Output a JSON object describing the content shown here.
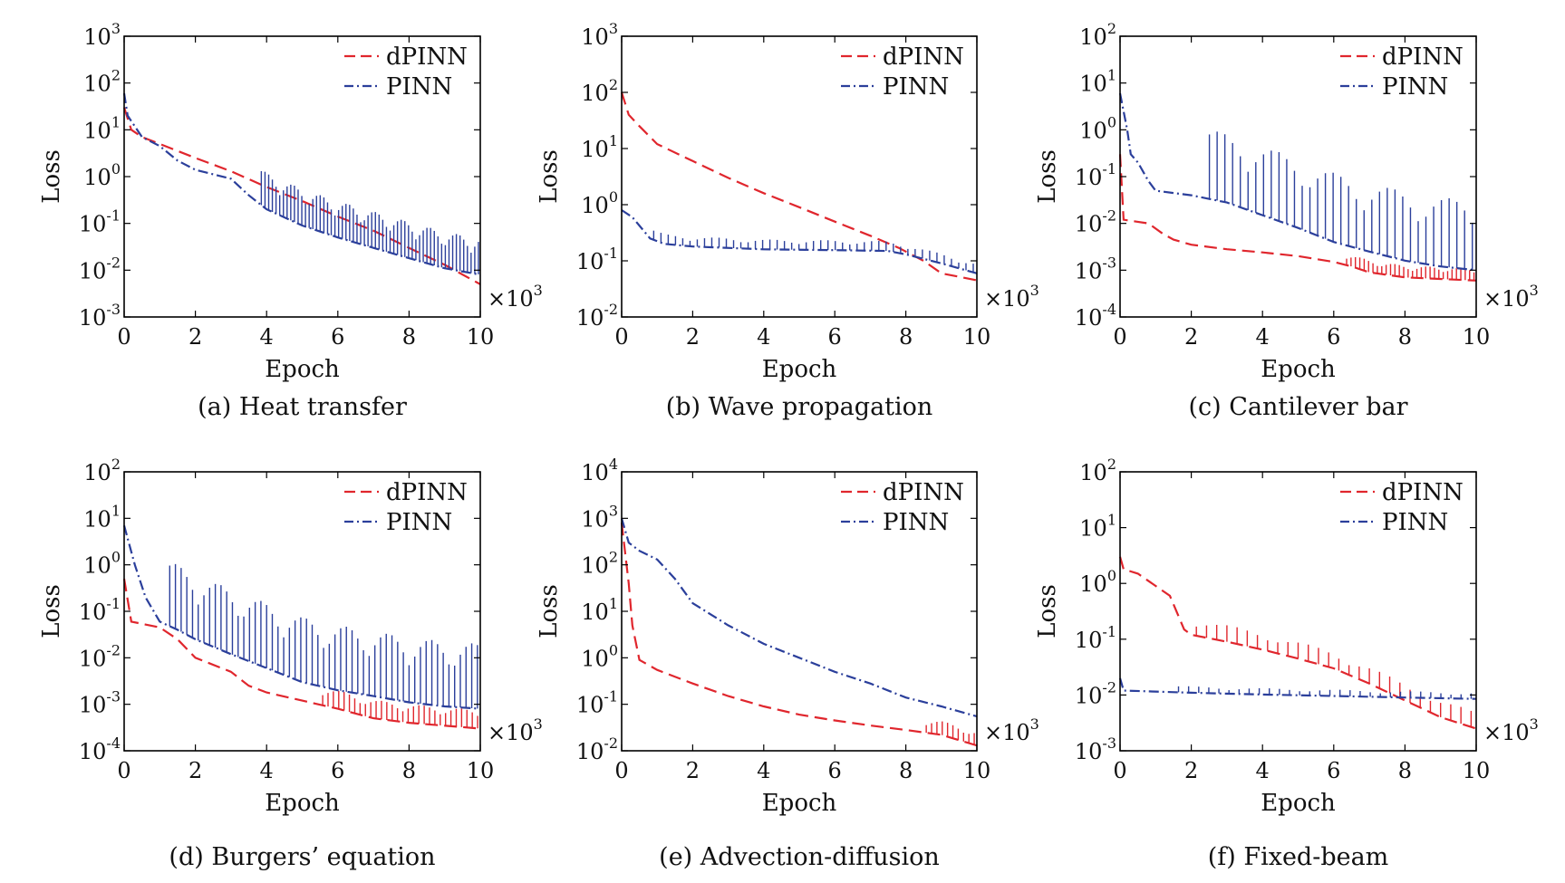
{
  "figure": {
    "legend_position": "top-right",
    "colors": {
      "dPINN": "#e0262d",
      "PINN": "#2b3f9b"
    }
  },
  "chart_data": [
    {
      "id": "a",
      "type": "line",
      "caption": "(a) Heat transfer",
      "xlabel": "Epoch",
      "ylabel": "Loss",
      "x_multiplier": "×10",
      "x_multiplier_exp": "3",
      "xlim": [
        0,
        10
      ],
      "xticks": [
        0,
        2,
        4,
        6,
        8,
        10
      ],
      "yscale": "log",
      "ylim_exp": [
        -3,
        3
      ],
      "legend": [
        "dPINN",
        "PINN"
      ],
      "series": [
        {
          "name": "dPINN",
          "style": "dashed",
          "points": [
            [
              0,
              30
            ],
            [
              0.2,
              10
            ],
            [
              0.5,
              7
            ],
            [
              1,
              5
            ],
            [
              2,
              2.5
            ],
            [
              3,
              1.3
            ],
            [
              4,
              0.6
            ],
            [
              5,
              0.3
            ],
            [
              6,
              0.14
            ],
            [
              7,
              0.07
            ],
            [
              8,
              0.03
            ],
            [
              9,
              0.013
            ],
            [
              10,
              0.005
            ]
          ]
        },
        {
          "name": "PINN",
          "style": "dashdot",
          "points": [
            [
              0,
              60
            ],
            [
              0.1,
              20
            ],
            [
              0.5,
              7
            ],
            [
              1,
              4.5
            ],
            [
              1.5,
              2.2
            ],
            [
              2,
              1.4
            ],
            [
              3,
              0.9
            ],
            [
              3.5,
              0.4
            ],
            [
              4,
              0.2
            ],
            [
              5,
              0.09
            ],
            [
              6,
              0.05
            ],
            [
              7,
              0.03
            ],
            [
              8,
              0.018
            ],
            [
              9,
              0.011
            ],
            [
              10,
              0.008
            ]
          ],
          "spikes": {
            "from": 3.8,
            "to": 10,
            "count": 60,
            "factor": 6
          }
        }
      ]
    },
    {
      "id": "b",
      "type": "line",
      "caption": "(b) Wave propagation",
      "xlabel": "Epoch",
      "ylabel": "Loss",
      "x_multiplier": "×10",
      "x_multiplier_exp": "3",
      "xlim": [
        0,
        10
      ],
      "xticks": [
        0,
        2,
        4,
        6,
        8,
        10
      ],
      "yscale": "log",
      "ylim_exp": [
        -2,
        3
      ],
      "legend": [
        "dPINN",
        "PINN"
      ],
      "series": [
        {
          "name": "dPINN",
          "style": "dashed",
          "points": [
            [
              0,
              100
            ],
            [
              0.2,
              40
            ],
            [
              0.5,
              25
            ],
            [
              1,
              12
            ],
            [
              2,
              6
            ],
            [
              3,
              3
            ],
            [
              4,
              1.6
            ],
            [
              5,
              0.9
            ],
            [
              6,
              0.5
            ],
            [
              7,
              0.28
            ],
            [
              7.8,
              0.17
            ],
            [
              8.5,
              0.1
            ],
            [
              9,
              0.06
            ],
            [
              10,
              0.045
            ]
          ]
        },
        {
          "name": "PINN",
          "style": "dashdot",
          "points": [
            [
              0,
              0.8
            ],
            [
              0.3,
              0.6
            ],
            [
              0.8,
              0.25
            ],
            [
              1.2,
              0.2
            ],
            [
              2,
              0.18
            ],
            [
              4,
              0.16
            ],
            [
              6,
              0.155
            ],
            [
              7.5,
              0.15
            ],
            [
              8,
              0.13
            ],
            [
              9,
              0.09
            ],
            [
              10,
              0.06
            ]
          ],
          "spikes": {
            "from": 0.8,
            "to": 10,
            "count": 45,
            "factor": 1.5
          }
        }
      ]
    },
    {
      "id": "c",
      "type": "line",
      "caption": "(c) Cantilever bar",
      "xlabel": "Epoch",
      "ylabel": "Loss",
      "x_multiplier": "×10",
      "x_multiplier_exp": "3",
      "xlim": [
        0,
        10
      ],
      "xticks": [
        0,
        2,
        4,
        6,
        8,
        10
      ],
      "yscale": "log",
      "ylim_exp": [
        -4,
        2
      ],
      "legend": [
        "dPINN",
        "PINN"
      ],
      "series": [
        {
          "name": "dPINN",
          "style": "dashed",
          "points": [
            [
              0,
              0.3
            ],
            [
              0.1,
              0.012
            ],
            [
              0.8,
              0.01
            ],
            [
              1.2,
              0.006
            ],
            [
              1.5,
              0.0045
            ],
            [
              2,
              0.0035
            ],
            [
              3,
              0.0028
            ],
            [
              4,
              0.0024
            ],
            [
              5,
              0.002
            ],
            [
              6,
              0.0015
            ],
            [
              6.5,
              0.0012
            ],
            [
              7,
              0.0009
            ],
            [
              8,
              0.0007
            ],
            [
              10,
              0.0006
            ]
          ],
          "spikes": {
            "from": 6.3,
            "to": 10,
            "count": 30,
            "factor": 1.8
          }
        },
        {
          "name": "PINN",
          "style": "dashdot",
          "points": [
            [
              0,
              6
            ],
            [
              0.2,
              1
            ],
            [
              0.3,
              0.3
            ],
            [
              0.5,
              0.2
            ],
            [
              0.8,
              0.08
            ],
            [
              1,
              0.05
            ],
            [
              2,
              0.04
            ],
            [
              3,
              0.028
            ],
            [
              4,
              0.015
            ],
            [
              5,
              0.008
            ],
            [
              6,
              0.004
            ],
            [
              7,
              0.0025
            ],
            [
              8,
              0.0016
            ],
            [
              9,
              0.0012
            ],
            [
              10,
              0.001
            ]
          ],
          "spikes": {
            "from": 2.4,
            "to": 10,
            "count": 35,
            "factor": 30
          }
        }
      ]
    },
    {
      "id": "d",
      "type": "line",
      "caption": "(d) Burgers’ equation",
      "xlabel": "Epoch",
      "ylabel": "Loss",
      "x_multiplier": "×10",
      "x_multiplier_exp": "3",
      "xlim": [
        0,
        10
      ],
      "xticks": [
        0,
        2,
        4,
        6,
        8,
        10
      ],
      "yscale": "log",
      "ylim_exp": [
        -4,
        2
      ],
      "legend": [
        "dPINN",
        "PINN"
      ],
      "series": [
        {
          "name": "dPINN",
          "style": "dashed",
          "points": [
            [
              0,
              0.5
            ],
            [
              0.2,
              0.06
            ],
            [
              1,
              0.045
            ],
            [
              1.5,
              0.025
            ],
            [
              2,
              0.01
            ],
            [
              3,
              0.005
            ],
            [
              3.5,
              0.0025
            ],
            [
              4,
              0.0018
            ],
            [
              5,
              0.0012
            ],
            [
              6,
              0.0008
            ],
            [
              7,
              0.0005
            ],
            [
              8,
              0.0004
            ],
            [
              10,
              0.0003
            ]
          ],
          "spikes": {
            "from": 5.5,
            "to": 10,
            "count": 30,
            "factor": 2.5
          }
        },
        {
          "name": "PINN",
          "style": "dashdot",
          "points": [
            [
              0,
              7
            ],
            [
              0.3,
              1
            ],
            [
              0.6,
              0.2
            ],
            [
              1,
              0.06
            ],
            [
              1.5,
              0.04
            ],
            [
              2,
              0.025
            ],
            [
              3,
              0.012
            ],
            [
              4,
              0.006
            ],
            [
              5,
              0.003
            ],
            [
              6,
              0.002
            ],
            [
              7,
              0.0015
            ],
            [
              8,
              0.0011
            ],
            [
              9,
              0.0009
            ],
            [
              10,
              0.0008
            ]
          ],
          "spikes": {
            "from": 1.2,
            "to": 10,
            "count": 55,
            "factor": 25
          }
        }
      ]
    },
    {
      "id": "e",
      "type": "line",
      "caption": "(e) Advection-diffusion",
      "xlabel": "Epoch",
      "ylabel": "Loss",
      "x_multiplier": "×10",
      "x_multiplier_exp": "3",
      "xlim": [
        0,
        10
      ],
      "xticks": [
        0,
        2,
        4,
        6,
        8,
        10
      ],
      "yscale": "log",
      "ylim_exp": [
        -2,
        4
      ],
      "legend": [
        "dPINN",
        "PINN"
      ],
      "series": [
        {
          "name": "dPINN",
          "style": "dashed",
          "points": [
            [
              0,
              800
            ],
            [
              0.2,
              40
            ],
            [
              0.3,
              5
            ],
            [
              0.5,
              0.9
            ],
            [
              1,
              0.55
            ],
            [
              2,
              0.28
            ],
            [
              3,
              0.15
            ],
            [
              4,
              0.09
            ],
            [
              5,
              0.06
            ],
            [
              6,
              0.045
            ],
            [
              7,
              0.035
            ],
            [
              8,
              0.028
            ],
            [
              9,
              0.022
            ],
            [
              10,
              0.013
            ]
          ],
          "spikes": {
            "from": 8.5,
            "to": 10,
            "count": 10,
            "factor": 2
          }
        },
        {
          "name": "PINN",
          "style": "dashdot",
          "points": [
            [
              0,
              1000
            ],
            [
              0.2,
              300
            ],
            [
              0.5,
              200
            ],
            [
              1,
              130
            ],
            [
              1.5,
              50
            ],
            [
              2,
              15
            ],
            [
              3,
              5
            ],
            [
              4,
              2
            ],
            [
              5,
              1
            ],
            [
              6,
              0.5
            ],
            [
              7,
              0.28
            ],
            [
              8,
              0.14
            ],
            [
              9,
              0.09
            ],
            [
              10,
              0.055
            ]
          ]
        }
      ]
    },
    {
      "id": "f",
      "type": "line",
      "caption": "(f) Fixed-beam",
      "xlabel": "Epoch",
      "ylabel": "Loss",
      "x_multiplier": "×10",
      "x_multiplier_exp": "3",
      "xlim": [
        0,
        10
      ],
      "xticks": [
        0,
        2,
        4,
        6,
        8,
        10
      ],
      "yscale": "log",
      "ylim_exp": [
        -3,
        2
      ],
      "legend": [
        "dPINN",
        "PINN"
      ],
      "series": [
        {
          "name": "dPINN",
          "style": "dashed",
          "points": [
            [
              0,
              3
            ],
            [
              0.1,
              1.8
            ],
            [
              0.5,
              1.5
            ],
            [
              1,
              0.9
            ],
            [
              1.4,
              0.6
            ],
            [
              1.8,
              0.15
            ],
            [
              2,
              0.12
            ],
            [
              3,
              0.09
            ],
            [
              4,
              0.065
            ],
            [
              5,
              0.045
            ],
            [
              6,
              0.03
            ],
            [
              7,
              0.016
            ],
            [
              8,
              0.008
            ],
            [
              9,
              0.004
            ],
            [
              10,
              0.0025
            ]
          ],
          "spikes": {
            "from": 2,
            "to": 10,
            "count": 28,
            "factor": 2
          }
        },
        {
          "name": "PINN",
          "style": "dashdot",
          "points": [
            [
              0,
              0.02
            ],
            [
              0.1,
              0.012
            ],
            [
              2,
              0.011
            ],
            [
              4,
              0.0102
            ],
            [
              6,
              0.0096
            ],
            [
              8,
              0.009
            ],
            [
              10,
              0.0085
            ]
          ],
          "spikes": {
            "from": 1.5,
            "to": 10,
            "count": 30,
            "factor": 1.3
          }
        }
      ]
    }
  ]
}
